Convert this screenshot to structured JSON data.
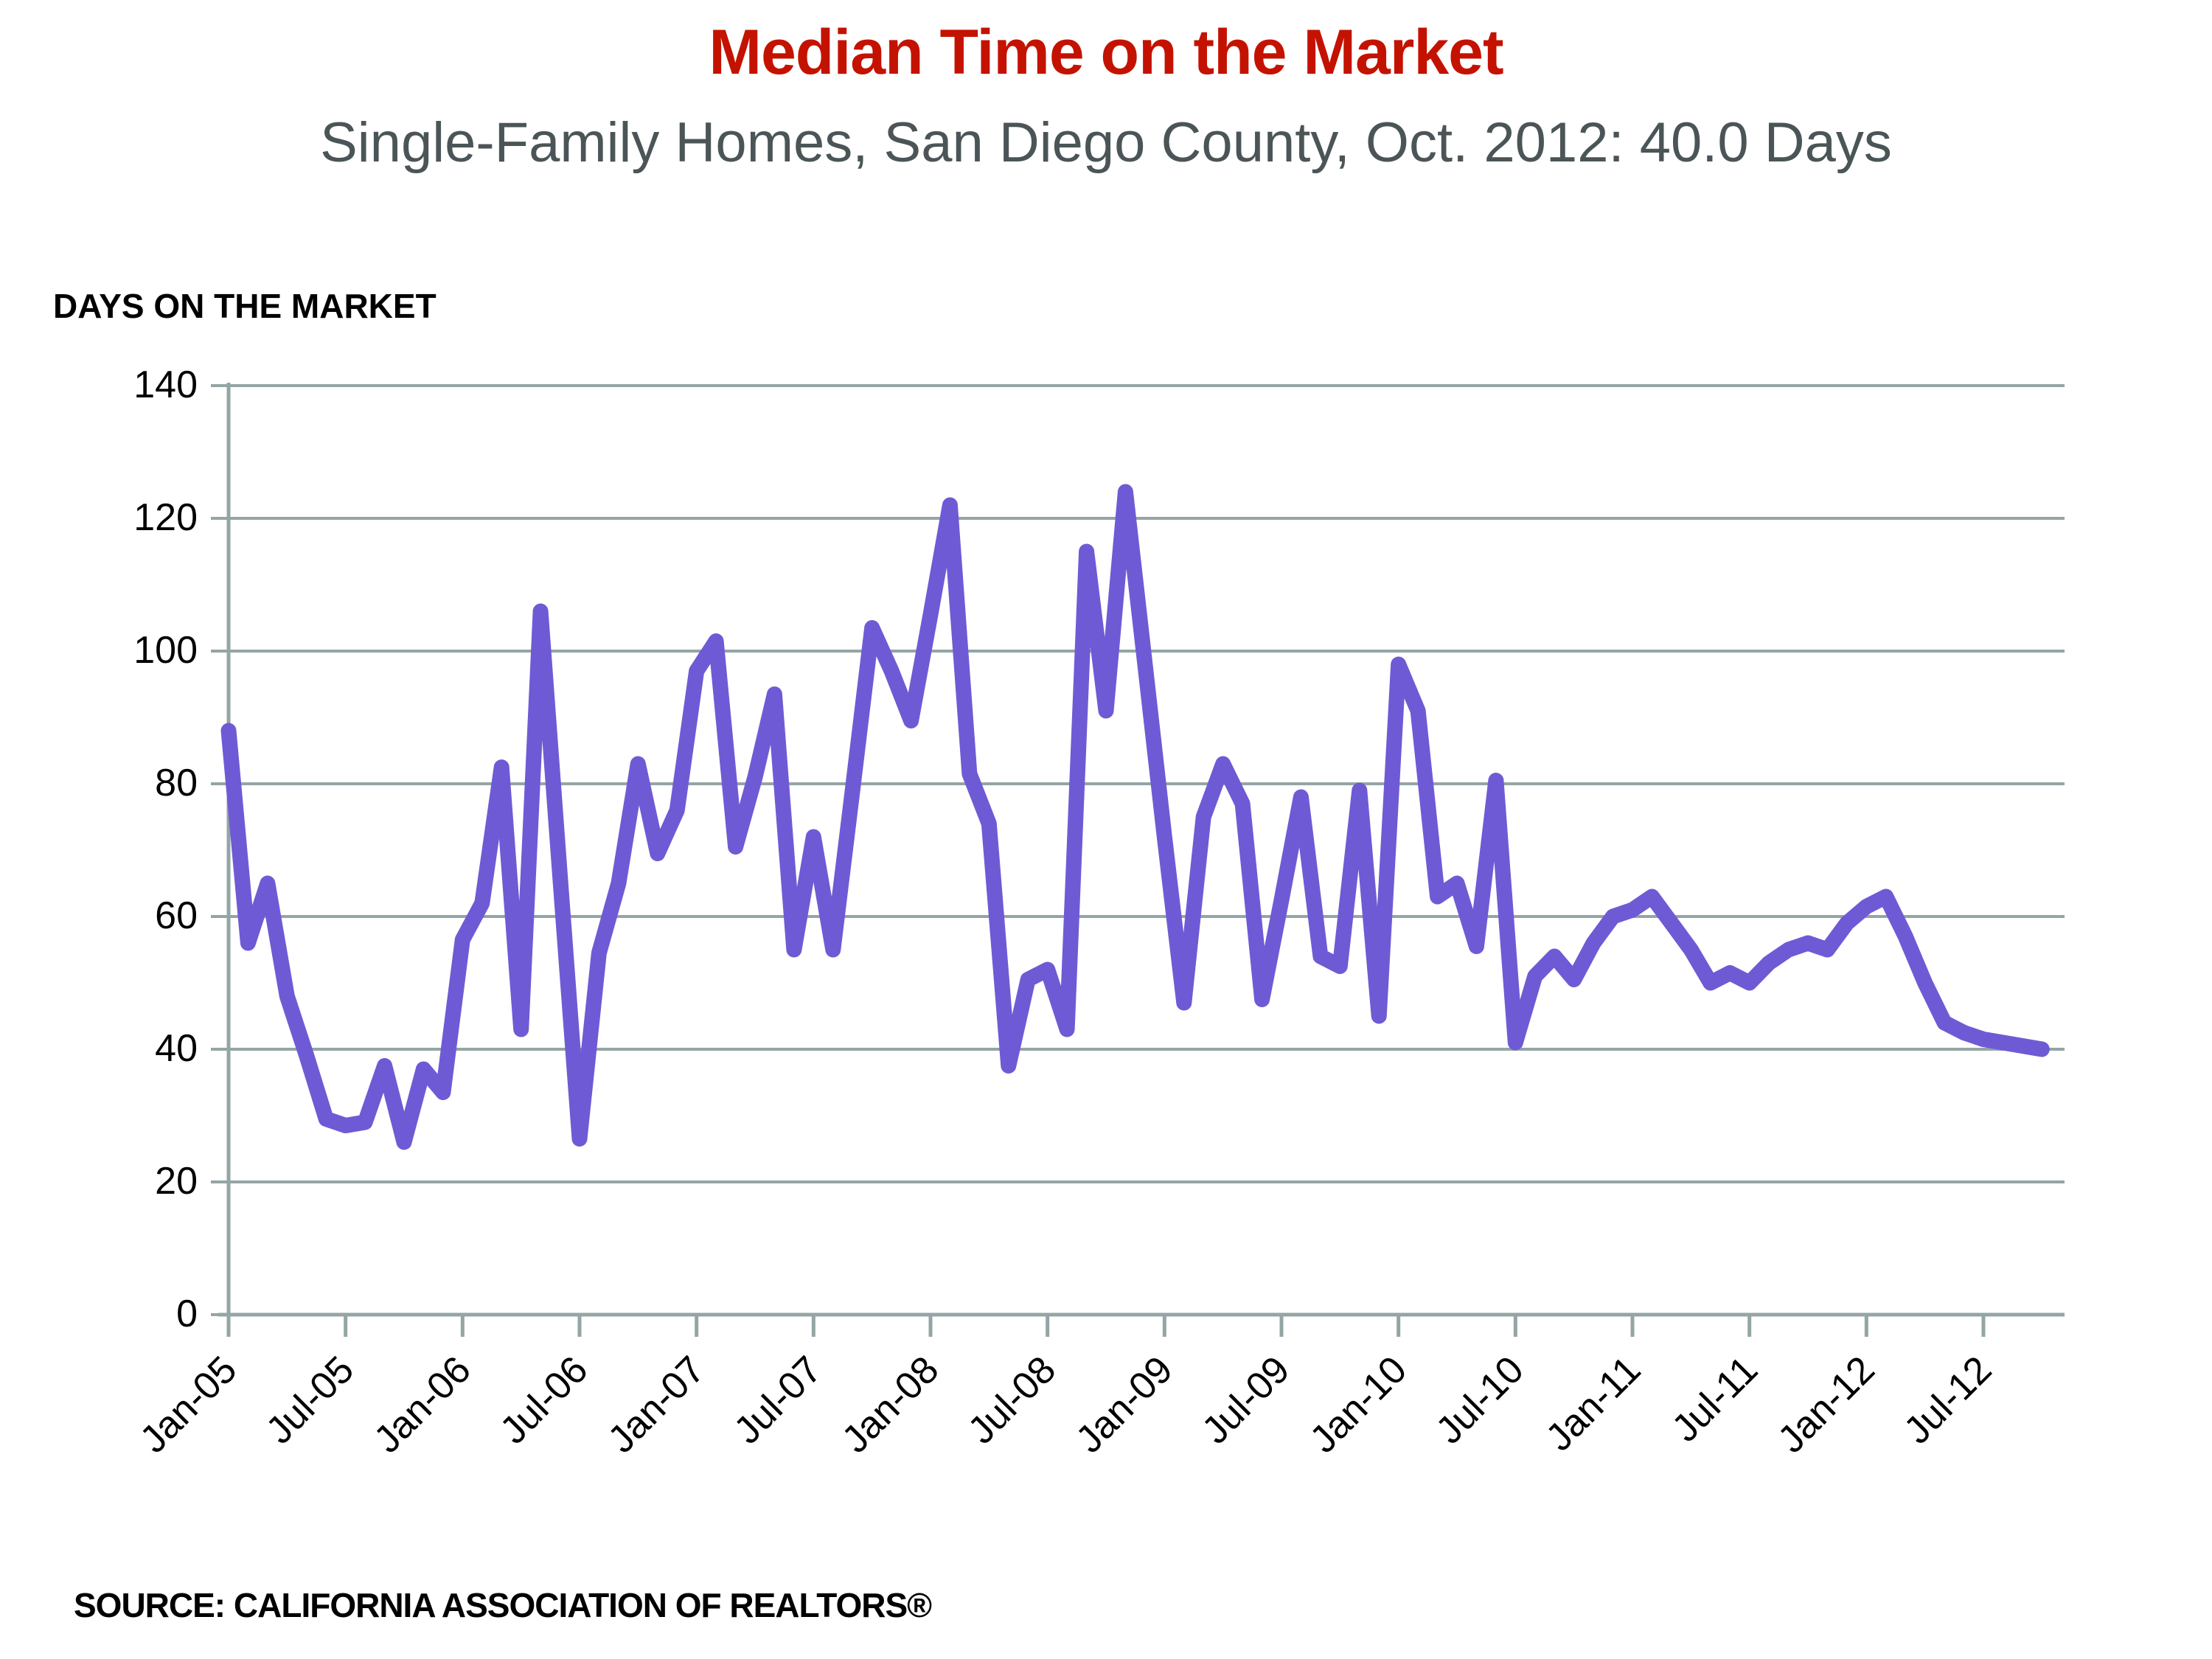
{
  "title": "Median Time on the Market",
  "subtitle": "Single-Family Homes, San Diego County, Oct. 2012: 40.0 Days",
  "source": "SOURCE: CALIFORNIA ASSOCIATION OF REALTORS®",
  "colors": {
    "title": "#c41200",
    "subtitle": "#4b5557",
    "line": "#6f5ad5",
    "grid": "#94a5a5",
    "axis": "#94a5a5",
    "text": "#000000",
    "background": "#ffffff"
  },
  "chart_data": {
    "type": "line",
    "title": "DAYS ON THE MARKET",
    "ylabel": "",
    "xlabel": "",
    "ylim": [
      0,
      140
    ],
    "yticks": [
      0,
      20,
      40,
      60,
      80,
      100,
      120,
      140
    ],
    "grid": "horizontal",
    "legend": "none",
    "x_tick_labels": [
      "Jan-05",
      "Jul-05",
      "Jan-06",
      "Jul-06",
      "Jan-07",
      "Jul-07",
      "Jan-08",
      "Jul-08",
      "Jan-09",
      "Jul-09",
      "Jan-10",
      "Jul-10",
      "Jan-11",
      "Jul-11",
      "Jan-12",
      "Jul-12"
    ],
    "x_tick_every": 6,
    "categories": [
      "Jan-05",
      "Feb-05",
      "Mar-05",
      "Apr-05",
      "May-05",
      "Jun-05",
      "Jul-05",
      "Aug-05",
      "Sep-05",
      "Oct-05",
      "Nov-05",
      "Dec-05",
      "Jan-06",
      "Feb-06",
      "Mar-06",
      "Apr-06",
      "May-06",
      "Jun-06",
      "Jul-06",
      "Aug-06",
      "Sep-06",
      "Oct-06",
      "Nov-06",
      "Dec-06",
      "Jan-07",
      "Feb-07",
      "Mar-07",
      "Apr-07",
      "May-07",
      "Jun-07",
      "Jul-07",
      "Aug-07",
      "Sep-07",
      "Oct-07",
      "Nov-07",
      "Dec-07",
      "Jan-08",
      "Feb-08",
      "Mar-08",
      "Apr-08",
      "May-08",
      "Jun-08",
      "Jul-08",
      "Aug-08",
      "Sep-08",
      "Oct-08",
      "Nov-08",
      "Dec-08",
      "Jan-09",
      "Feb-09",
      "Mar-09",
      "Apr-09",
      "May-09",
      "Jun-09",
      "Jul-09",
      "Aug-09",
      "Sep-09",
      "Oct-09",
      "Nov-09",
      "Dec-09",
      "Jan-10",
      "Feb-10",
      "Mar-10",
      "Apr-10",
      "May-10",
      "Jun-10",
      "Jul-10",
      "Aug-10",
      "Sep-10",
      "Oct-10",
      "Nov-10",
      "Dec-10",
      "Jan-11",
      "Feb-11",
      "Mar-11",
      "Apr-11",
      "May-11",
      "Jun-11",
      "Jul-11",
      "Aug-11",
      "Sep-11",
      "Oct-11",
      "Nov-11",
      "Dec-11",
      "Jan-12",
      "Feb-12",
      "Mar-12",
      "Apr-12",
      "May-12",
      "Jun-12",
      "Jul-12",
      "Aug-12",
      "Sep-12",
      "Oct-12"
    ],
    "values": [
      88,
      56,
      65,
      48,
      39,
      29.5,
      28.5,
      29,
      37.5,
      26,
      37,
      33.5,
      56.5,
      62,
      82.5,
      43,
      106,
      66,
      26.5,
      54.5,
      65,
      83,
      69.5,
      76,
      97,
      101.5,
      70.5,
      81,
      93.5,
      55,
      72,
      55,
      79,
      103.5,
      97,
      89.5,
      105.5,
      122,
      81.5,
      74,
      37.5,
      50.5,
      52,
      43,
      115,
      91,
      124,
      98,
      72,
      47,
      75,
      83,
      77,
      47.5,
      62.5,
      78,
      54,
      52.5,
      79,
      45,
      98,
      91,
      63,
      65,
      55.5,
      80.5,
      41,
      51,
      54,
      50.5,
      56,
      60,
      61,
      63,
      59,
      55,
      50,
      51.5,
      50,
      53,
      55,
      56,
      55,
      59,
      61.5,
      63,
      57,
      50,
      44,
      42.5,
      41.5,
      41,
      40.5,
      40
    ],
    "last_point_label": "Oct. 2012: 40.0 Days"
  }
}
